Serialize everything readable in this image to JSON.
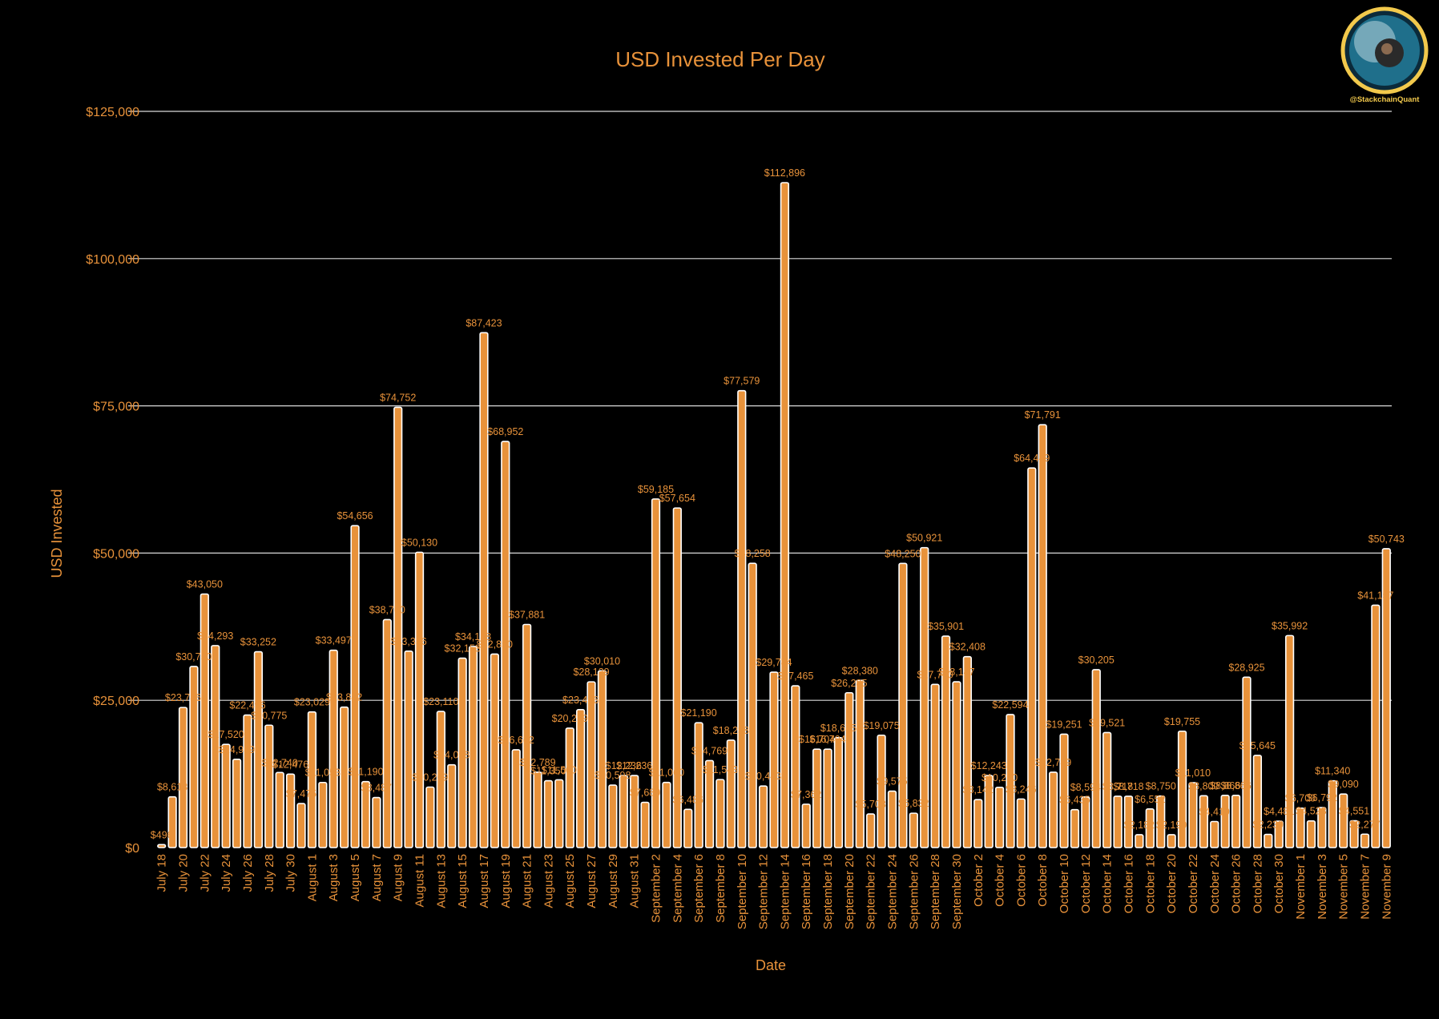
{
  "brand": {
    "handle": "@StackchainQuant"
  },
  "colors": {
    "bar": "#E8923A",
    "text": "#E8923A",
    "background": "#000000",
    "grid": "#d9d9d9"
  },
  "chart_data": {
    "type": "bar",
    "title": "USD Invested Per Day",
    "xlabel": "Date",
    "ylabel": "USD Invested",
    "ylim": [
      0,
      125000
    ],
    "yticks": [
      0,
      25000,
      50000,
      75000,
      100000,
      125000
    ],
    "ytick_labels": [
      "$0",
      "$25,000",
      "$50,000",
      "$75,000",
      "$100,000",
      "$125,000"
    ],
    "grid": true,
    "xtick_labels": [
      "July 18",
      "July 20",
      "July 22",
      "July 24",
      "July 26",
      "July 28",
      "July 30",
      "August 1",
      "August 3",
      "August 5",
      "August 7",
      "August 9",
      "August 11",
      "August 13",
      "August 15",
      "August 17",
      "August 19",
      "August 21",
      "August 23",
      "August 25",
      "August 27",
      "August 29",
      "August 31",
      "September 2",
      "September 4",
      "September 6",
      "September 8",
      "September 10",
      "September 12",
      "September 14",
      "September 16",
      "September 18",
      "September 20",
      "September 22",
      "September 24",
      "September 26",
      "September 28",
      "September 30",
      "October 2",
      "October 4",
      "October 6",
      "October 8",
      "October 10",
      "October 12",
      "October 14",
      "October 16",
      "October 18",
      "October 20",
      "October 22",
      "October 24",
      "October 26",
      "October 28",
      "October 30",
      "November 1",
      "November 3",
      "November 5",
      "November 7",
      "November 9"
    ],
    "values": [
      496,
      8613,
      23786,
      30750,
      43050,
      34293,
      17520,
      14989,
      22496,
      33252,
      20775,
      12740,
      12476,
      7475,
      23029,
      11053,
      33497,
      23842,
      54656,
      11190,
      8487,
      38700,
      74752,
      33356,
      50130,
      10269,
      23110,
      14058,
      32153,
      34138,
      87423,
      32850,
      68952,
      16602,
      37881,
      12789,
      11350,
      11500,
      20279,
      23416,
      28139,
      30010,
      10598,
      12236,
      12236,
      7680,
      59185,
      11060,
      57654,
      6486,
      21190,
      14769,
      11543,
      18238,
      77579,
      48258,
      10443,
      29784,
      112896,
      27465,
      7362,
      16704,
      16704,
      18655,
      26285,
      28380,
      5703,
      19075,
      9575,
      48250,
      5832,
      50921,
      27700,
      35901,
      28147,
      32408,
      8142,
      12243,
      10230,
      22594,
      8246,
      64449,
      71791,
      12789,
      19251,
      6435,
      8594,
      30205,
      19521,
      8718,
      8718,
      2182,
      6552,
      8750,
      2190,
      19755,
      11010,
      8800,
      4419,
      8866,
      8866,
      28925,
      15645,
      2239,
      4481,
      35992,
      6700,
      4523,
      6792,
      11340,
      9090,
      4551,
      2277,
      41157,
      50743
    ],
    "data_labels": [
      "$496",
      "$8,613",
      "$23,786",
      "$30,750",
      "$43,050",
      "$34,293",
      "$17,520",
      "$14,989",
      "$22,496",
      "$33,252",
      "$20,775",
      "$12,740",
      "$12,476",
      "$7,475",
      "$23,029",
      "$11,053",
      "$33,497",
      "$23,842",
      "$54,656",
      "$11,190",
      "$8,487",
      "$38,700",
      "$74,752",
      "$33,356",
      "$50,130",
      "$10,269",
      "$23,110",
      "$14,058",
      "$32,153",
      "$34,138",
      "$87,423",
      "$32,850",
      "$68,952",
      "$16,602",
      "$37,881",
      "$12,789",
      "$11,350",
      "$11,500",
      "$20,279",
      "$23,416",
      "$28,139",
      "$30,010",
      "$10,598",
      "$12,236",
      "$12,236",
      "$7,680",
      "$59,185",
      "$11,060",
      "$57,654",
      "$6,486",
      "$21,190",
      "$14,769",
      "$11,543",
      "$18,238",
      "$77,579",
      "$48,258",
      "$10,443",
      "$29,784",
      "$112,896",
      "$27,465",
      "$7,362",
      "$16,704",
      "$16,704",
      "$18,655",
      "$26,285",
      "$28,380",
      "$5,703",
      "$19,075",
      "$9,575",
      "$48,250",
      "$5,832",
      "$50,921",
      "$27,700",
      "$35,901",
      "$28,147",
      "$32,408",
      "$8,142",
      "$12,243",
      "$10,230",
      "$22,594",
      "$8,246",
      "$64,449",
      "$71,791",
      "$12,789",
      "$19,251",
      "$6,435",
      "$8,594",
      "$30,205",
      "$19,521",
      "$8,718",
      "$8,718",
      "$2,182",
      "$6,552",
      "$8,750",
      "$2,190",
      "$19,755",
      "$11,010",
      "$8,800",
      "$4,419",
      "$8,866",
      "$8,866",
      "$28,925",
      "$15,645",
      "$2,239",
      "$4,481",
      "$35,992",
      "$6,700",
      "$4,523",
      "$6,792",
      "$11,340",
      "$9,090",
      "$4,551",
      "$2,277",
      "$41,157",
      "$50,743"
    ]
  }
}
